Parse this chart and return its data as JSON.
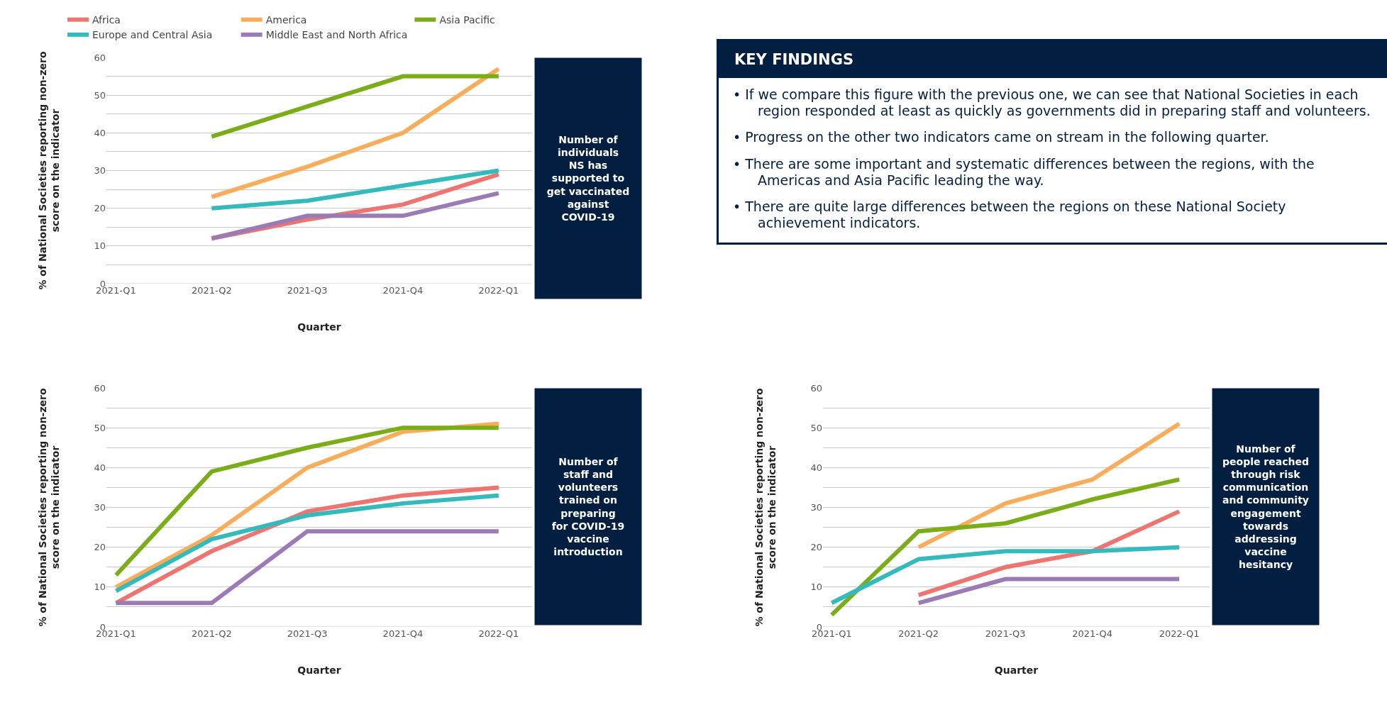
{
  "chart_data": [
    {
      "type": "line",
      "xlabel": "Quarter",
      "ylabel": "% of National Societies reporting non-zero\nscore on the indicator",
      "categories": [
        "2021-Q1",
        "2021-Q2",
        "2021-Q3",
        "2021-Q4",
        "2022-Q1"
      ],
      "ylim": [
        0,
        60
      ],
      "yticks": [
        0,
        {
          "value": 5,
          "label": null
        },
        10,
        {
          "value": 15,
          "label": null
        },
        20,
        {
          "value": 25,
          "label": null
        },
        30,
        {
          "value": 35,
          "label": null
        },
        40,
        {
          "value": 45,
          "label": null
        },
        50,
        {
          "value": 55,
          "label": null
        },
        60
      ],
      "grid": "y",
      "legend": "top",
      "marker": "none",
      "line_style": "solid",
      "annotations": [
        "Number of\nindividuals\nNS has\nsupported to\nget vaccinated\nagainst\nCOVID-19"
      ],
      "series": [
        {
          "name": "Africa",
          "color": "#ee7470",
          "values": [
            null,
            12,
            17,
            21,
            29
          ]
        },
        {
          "name": "America",
          "color": "#f9ad5a",
          "values": [
            null,
            23,
            31,
            40,
            57
          ]
        },
        {
          "name": "Asia Pacific",
          "color": "#7aad17",
          "values": [
            null,
            39,
            47,
            55,
            55
          ]
        },
        {
          "name": "Europe and Central Asia",
          "color": "#34b9bd",
          "values": [
            null,
            20,
            22,
            26,
            30
          ]
        },
        {
          "name": "Middle East and North Africa",
          "color": "#9b7bb6",
          "values": [
            null,
            12,
            18,
            18,
            24
          ]
        }
      ]
    },
    {
      "type": "other",
      "title": "KEY FINDINGS",
      "annotations": [
        "• If we compare this figure with the previous one, we can see that National Societies in each region responded at least as quickly as governments did in preparing staff and volunteers.",
        "• Progress on the other two indicators came on stream in the following quarter.",
        "• There are some important and systematic differences between the regions, with the Americas and Asia Pacific leading the way.",
        "• There are quite large differences between the regions on these National Society achievement indicators."
      ]
    },
    {
      "type": "line",
      "xlabel": "Quarter",
      "ylabel": "% of National Societies reporting non-zero\nscore on the indicator",
      "categories": [
        "2021-Q1",
        "2021-Q2",
        "2021-Q3",
        "2021-Q4",
        "2022-Q1"
      ],
      "ylim": [
        0,
        60
      ],
      "yticks": [
        0,
        {
          "value": 5,
          "label": null
        },
        10,
        {
          "value": 15,
          "label": null
        },
        20,
        {
          "value": 25,
          "label": null
        },
        30,
        {
          "value": 35,
          "label": null
        },
        40,
        {
          "value": 45,
          "label": null
        },
        50,
        {
          "value": 55,
          "label": null
        },
        60
      ],
      "grid": "y",
      "marker": "none",
      "line_style": "solid",
      "annotations": [
        "Number of\nstaff and\nvolunteers\ntrained on\npreparing\nfor COVID-19\nvaccine\nintroduction"
      ],
      "series": [
        {
          "color": "#ee7470",
          "values": [
            6,
            19,
            29,
            33,
            35
          ]
        },
        {
          "color": "#f9ad5a",
          "values": [
            10,
            23,
            40,
            49,
            51
          ]
        },
        {
          "color": "#7aad17",
          "values": [
            13,
            39,
            45,
            50,
            50
          ]
        },
        {
          "color": "#34b9bd",
          "values": [
            9,
            22,
            28,
            31,
            33
          ]
        },
        {
          "color": "#9b7bb6",
          "values": [
            6,
            6,
            24,
            24,
            24
          ]
        }
      ]
    },
    {
      "type": "line",
      "xlabel": "Quarter",
      "ylabel": "% of National Societies reporting non-zero\nscore on the indicator",
      "categories": [
        "2021-Q1",
        "2021-Q2",
        "2021-Q3",
        "2021-Q4",
        "2022-Q1"
      ],
      "ylim": [
        0,
        60
      ],
      "yticks": [
        0,
        {
          "value": 5,
          "label": null
        },
        10,
        {
          "value": 15,
          "label": null
        },
        20,
        {
          "value": 25,
          "label": null
        },
        30,
        {
          "value": 35,
          "label": null
        },
        40,
        {
          "value": 45,
          "label": null
        },
        50,
        {
          "value": 55,
          "label": null
        },
        60
      ],
      "grid": "y",
      "marker": "none",
      "line_style": "solid",
      "annotations": [
        "Number of\npeople reached\nthrough risk\ncommunication\nand community\nengagement\ntowards\naddressing\nvaccine\nhesitancy"
      ],
      "series": [
        {
          "color": "#ee7470",
          "values": [
            null,
            8,
            15,
            19,
            29
          ]
        },
        {
          "color": "#f9ad5a",
          "values": [
            null,
            20,
            31,
            37,
            51
          ]
        },
        {
          "color": "#7aad17",
          "values": [
            3,
            24,
            26,
            32,
            37
          ]
        },
        {
          "color": "#34b9bd",
          "values": [
            6,
            17,
            19,
            19,
            20
          ]
        },
        {
          "color": "#9b7bb6",
          "values": [
            null,
            6,
            12,
            12,
            12
          ]
        }
      ]
    }
  ]
}
